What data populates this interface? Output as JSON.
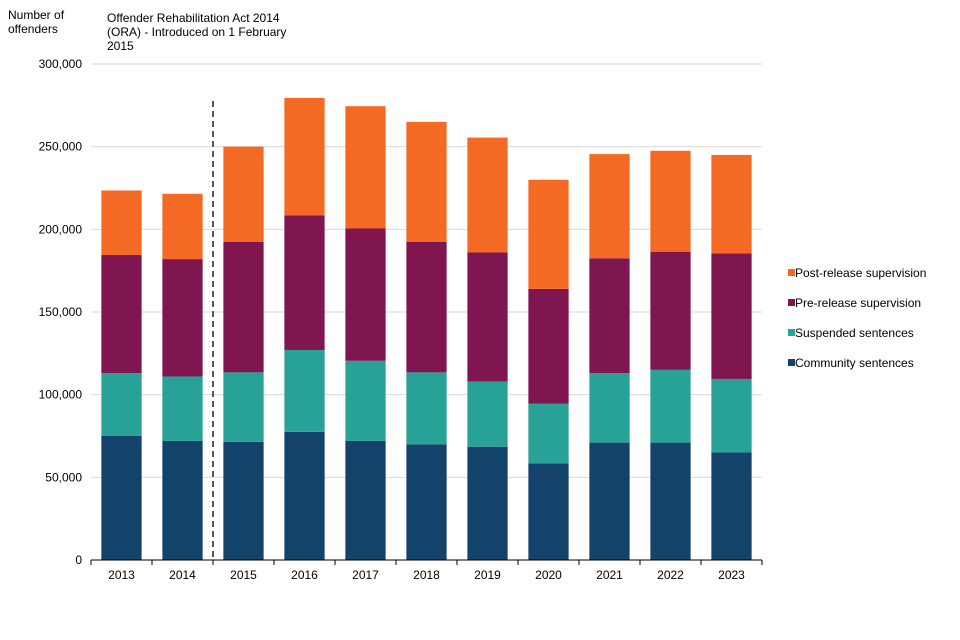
{
  "chart_data": {
    "type": "bar",
    "stacked": true,
    "ylabel": "Number of offenders",
    "annotation": "Offender Rehabilitation Act 2014 (ORA) - Introduced on 1 February 2015",
    "annotation_line_between": [
      "2014",
      "2015"
    ],
    "ylim": [
      0,
      300000
    ],
    "yticks": [
      0,
      50000,
      100000,
      150000,
      200000,
      250000,
      300000
    ],
    "ytick_labels": [
      "0",
      "50,000",
      "100,000",
      "150,000",
      "200,000",
      "250,000",
      "300,000"
    ],
    "grid": "horizontal",
    "legend_position": "right",
    "categories": [
      "2013",
      "2014",
      "2015",
      "2016",
      "2017",
      "2018",
      "2019",
      "2020",
      "2021",
      "2022",
      "2023"
    ],
    "series": [
      {
        "name": "Community sentences",
        "color": "#13426b",
        "values": [
          75000,
          72000,
          71500,
          77500,
          72000,
          70000,
          68500,
          58500,
          71000,
          71000,
          65000
        ]
      },
      {
        "name": "Suspended sentences",
        "color": "#28a197",
        "values": [
          38000,
          39000,
          42000,
          49500,
          48500,
          43500,
          39500,
          36000,
          42000,
          44000,
          44500
        ]
      },
      {
        "name": "Pre-release supervision",
        "color": "#801650",
        "values": [
          71500,
          71000,
          79000,
          81500,
          80000,
          79000,
          78000,
          69500,
          69500,
          71500,
          76000
        ]
      },
      {
        "name": "Post-release supervision",
        "color": "#f46a25",
        "values": [
          39000,
          39500,
          57500,
          71000,
          74000,
          72500,
          69500,
          66000,
          63000,
          61000,
          59500
        ]
      }
    ]
  }
}
